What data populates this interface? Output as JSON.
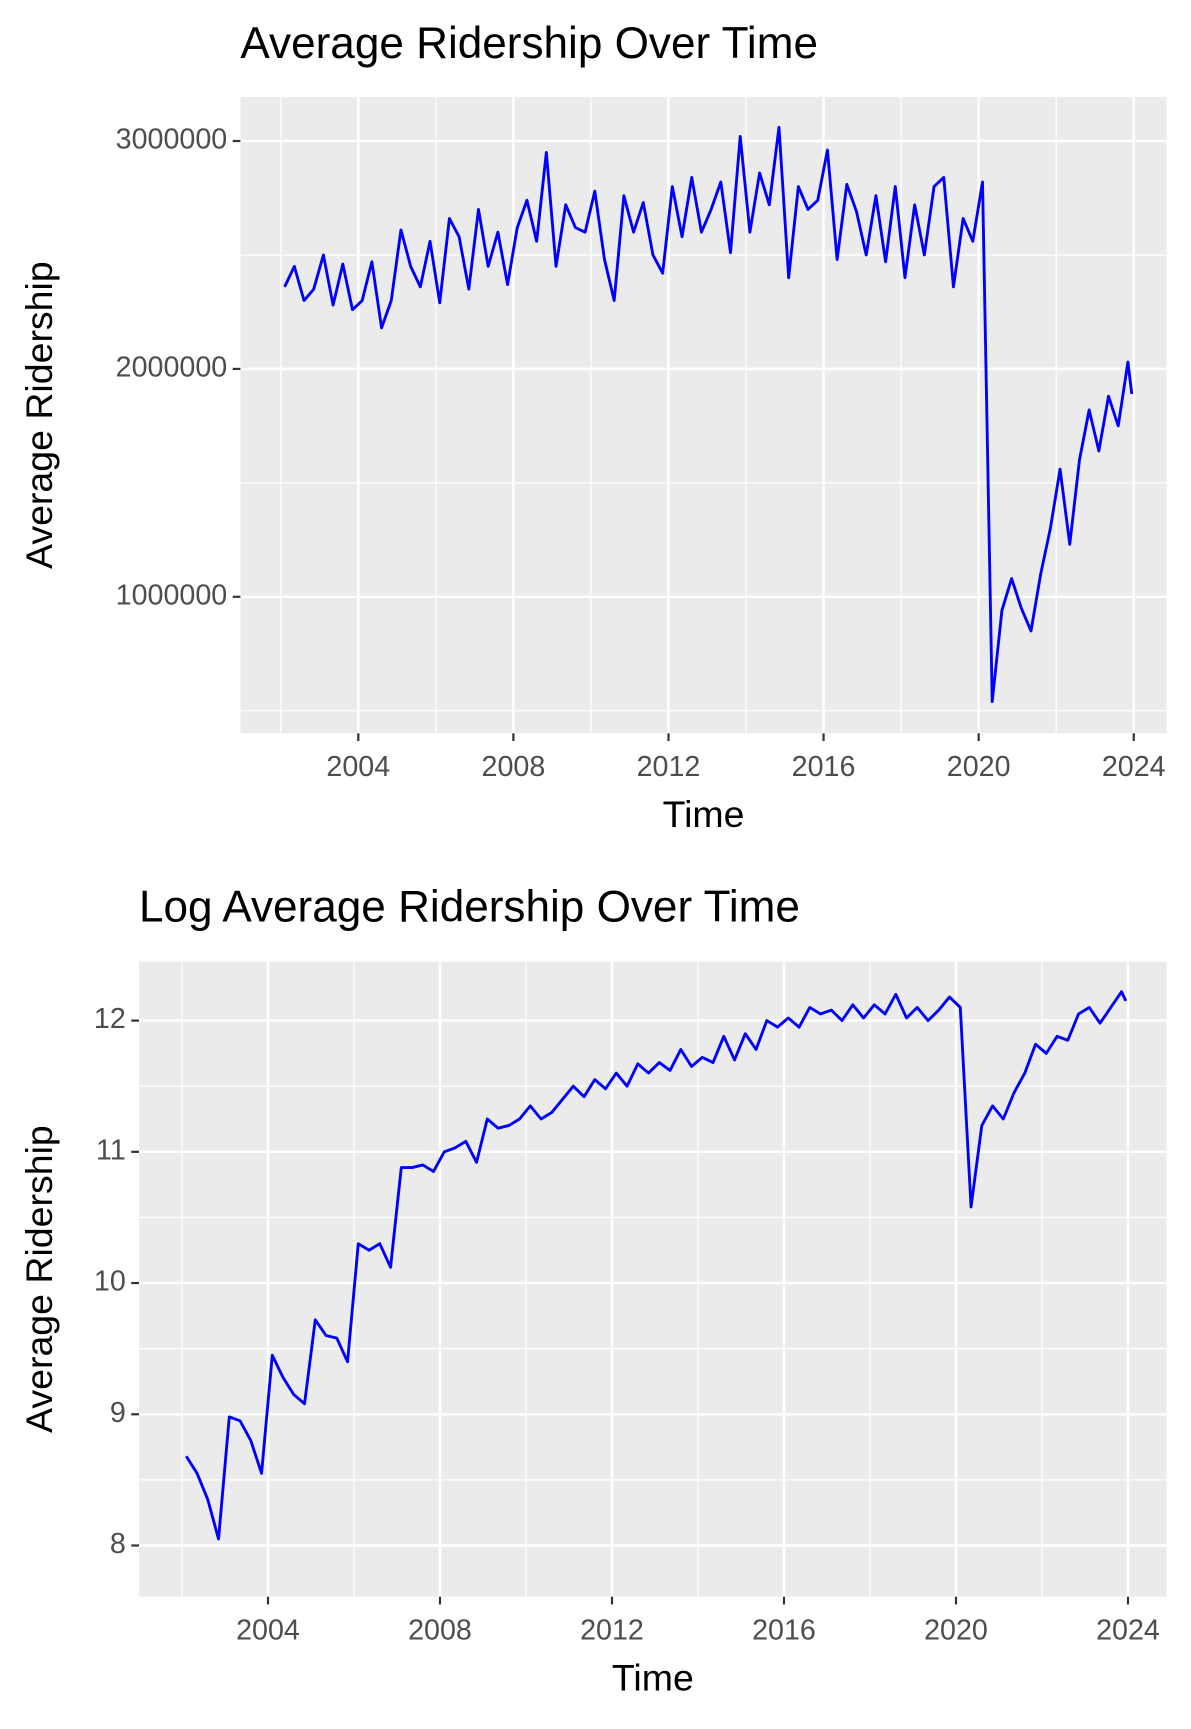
{
  "chart_data": [
    {
      "type": "line",
      "title": "Average Ridership Over Time",
      "xlabel": "Time",
      "ylabel": "Average Ridership",
      "xlim": [
        2000.96,
        2024.85
      ],
      "ylim": [
        401000,
        3193000
      ],
      "xticks": [
        2004,
        2008,
        2012,
        2016,
        2020,
        2024
      ],
      "yticks": [
        1000000,
        2000000,
        3000000
      ],
      "grid": true,
      "x": [
        2002.1,
        2002.35,
        2002.6,
        2002.85,
        2003.1,
        2003.35,
        2003.6,
        2003.85,
        2004.1,
        2004.35,
        2004.6,
        2004.85,
        2005.1,
        2005.35,
        2005.6,
        2005.85,
        2006.1,
        2006.35,
        2006.6,
        2006.85,
        2007.1,
        2007.35,
        2007.6,
        2007.85,
        2008.1,
        2008.35,
        2008.6,
        2008.85,
        2009.1,
        2009.35,
        2009.6,
        2009.85,
        2010.1,
        2010.35,
        2010.6,
        2010.85,
        2011.1,
        2011.35,
        2011.6,
        2011.85,
        2012.1,
        2012.35,
        2012.6,
        2012.85,
        2013.1,
        2013.35,
        2013.6,
        2013.85,
        2014.1,
        2014.35,
        2014.6,
        2014.85,
        2015.1,
        2015.35,
        2015.6,
        2015.85,
        2016.1,
        2016.35,
        2016.6,
        2016.85,
        2017.1,
        2017.35,
        2017.6,
        2017.85,
        2018.1,
        2018.35,
        2018.6,
        2018.85,
        2019.1,
        2019.35,
        2019.6,
        2019.85,
        2020.1,
        2020.35,
        2020.6,
        2020.85,
        2021.1,
        2021.35,
        2021.6,
        2021.85,
        2022.1,
        2022.35,
        2022.6,
        2022.85,
        2023.1,
        2023.35,
        2023.6,
        2023.85,
        2023.95
      ],
      "series": [
        {
          "name": "Average Ridership",
          "color": "#0000ff",
          "values": [
            2360000,
            2450000,
            2300000,
            2350000,
            2500000,
            2280000,
            2460000,
            2260000,
            2300000,
            2470000,
            2180000,
            2300000,
            2610000,
            2450000,
            2360000,
            2560000,
            2290000,
            2660000,
            2580000,
            2350000,
            2700000,
            2450000,
            2600000,
            2370000,
            2620000,
            2740000,
            2560000,
            2950000,
            2450000,
            2720000,
            2620000,
            2600000,
            2780000,
            2480000,
            2300000,
            2760000,
            2600000,
            2730000,
            2500000,
            2420000,
            2800000,
            2580000,
            2840000,
            2600000,
            2700000,
            2820000,
            2510000,
            3020000,
            2600000,
            2860000,
            2720000,
            3060000,
            2400000,
            2800000,
            2700000,
            2740000,
            2960000,
            2480000,
            2810000,
            2690000,
            2500000,
            2760000,
            2470000,
            2800000,
            2400000,
            2720000,
            2500000,
            2800000,
            2840000,
            2360000,
            2660000,
            2560000,
            2820000,
            540000,
            940000,
            1080000,
            950000,
            850000,
            1100000,
            1300000,
            1560000,
            1230000,
            1600000,
            1820000,
            1640000,
            1880000,
            1750000,
            2030000,
            1890000
          ]
        }
      ]
    },
    {
      "type": "line",
      "title": "Log Average Ridership Over Time",
      "xlabel": "Time",
      "ylabel": "Average Ridership",
      "xlim": [
        2001.0,
        2024.9
      ],
      "ylim": [
        7.61,
        12.45
      ],
      "xticks": [
        2004,
        2008,
        2012,
        2016,
        2020,
        2024
      ],
      "yticks": [
        8,
        9,
        10,
        11,
        12
      ],
      "grid": true,
      "x": [
        2002.1,
        2002.35,
        2002.6,
        2002.85,
        2003.1,
        2003.35,
        2003.6,
        2003.85,
        2004.1,
        2004.35,
        2004.6,
        2004.85,
        2005.1,
        2005.35,
        2005.6,
        2005.85,
        2006.1,
        2006.35,
        2006.6,
        2006.85,
        2007.1,
        2007.35,
        2007.6,
        2007.85,
        2008.1,
        2008.35,
        2008.6,
        2008.85,
        2009.1,
        2009.35,
        2009.6,
        2009.85,
        2010.1,
        2010.35,
        2010.6,
        2010.85,
        2011.1,
        2011.35,
        2011.6,
        2011.85,
        2012.1,
        2012.35,
        2012.6,
        2012.85,
        2013.1,
        2013.35,
        2013.6,
        2013.85,
        2014.1,
        2014.35,
        2014.6,
        2014.85,
        2015.1,
        2015.35,
        2015.6,
        2015.85,
        2016.1,
        2016.35,
        2016.6,
        2016.85,
        2017.1,
        2017.35,
        2017.6,
        2017.85,
        2018.1,
        2018.35,
        2018.6,
        2018.85,
        2019.1,
        2019.35,
        2019.6,
        2019.85,
        2020.1,
        2020.35,
        2020.6,
        2020.85,
        2021.1,
        2021.35,
        2021.6,
        2021.85,
        2022.1,
        2022.35,
        2022.6,
        2022.85,
        2023.1,
        2023.35,
        2023.6,
        2023.85,
        2023.95
      ],
      "series": [
        {
          "name": "Log Average Ridership",
          "color": "#0000ff",
          "values": [
            8.68,
            8.55,
            8.35,
            8.05,
            8.98,
            8.95,
            8.8,
            8.55,
            9.45,
            9.28,
            9.15,
            9.08,
            9.72,
            9.6,
            9.58,
            9.4,
            10.3,
            10.25,
            10.3,
            10.12,
            10.88,
            10.88,
            10.9,
            10.85,
            11.0,
            11.03,
            11.08,
            10.92,
            11.25,
            11.18,
            11.2,
            11.25,
            11.35,
            11.25,
            11.3,
            11.4,
            11.5,
            11.42,
            11.55,
            11.48,
            11.6,
            11.5,
            11.67,
            11.6,
            11.68,
            11.62,
            11.78,
            11.65,
            11.72,
            11.68,
            11.88,
            11.7,
            11.9,
            11.78,
            12.0,
            11.95,
            12.02,
            11.95,
            12.1,
            12.05,
            12.08,
            12.0,
            12.12,
            12.02,
            12.12,
            12.05,
            12.2,
            12.02,
            12.1,
            12.0,
            12.08,
            12.18,
            12.1,
            10.58,
            11.2,
            11.35,
            11.25,
            11.45,
            11.6,
            11.82,
            11.75,
            11.88,
            11.85,
            12.05,
            12.1,
            11.98,
            12.1,
            12.22,
            12.15
          ]
        }
      ]
    }
  ]
}
